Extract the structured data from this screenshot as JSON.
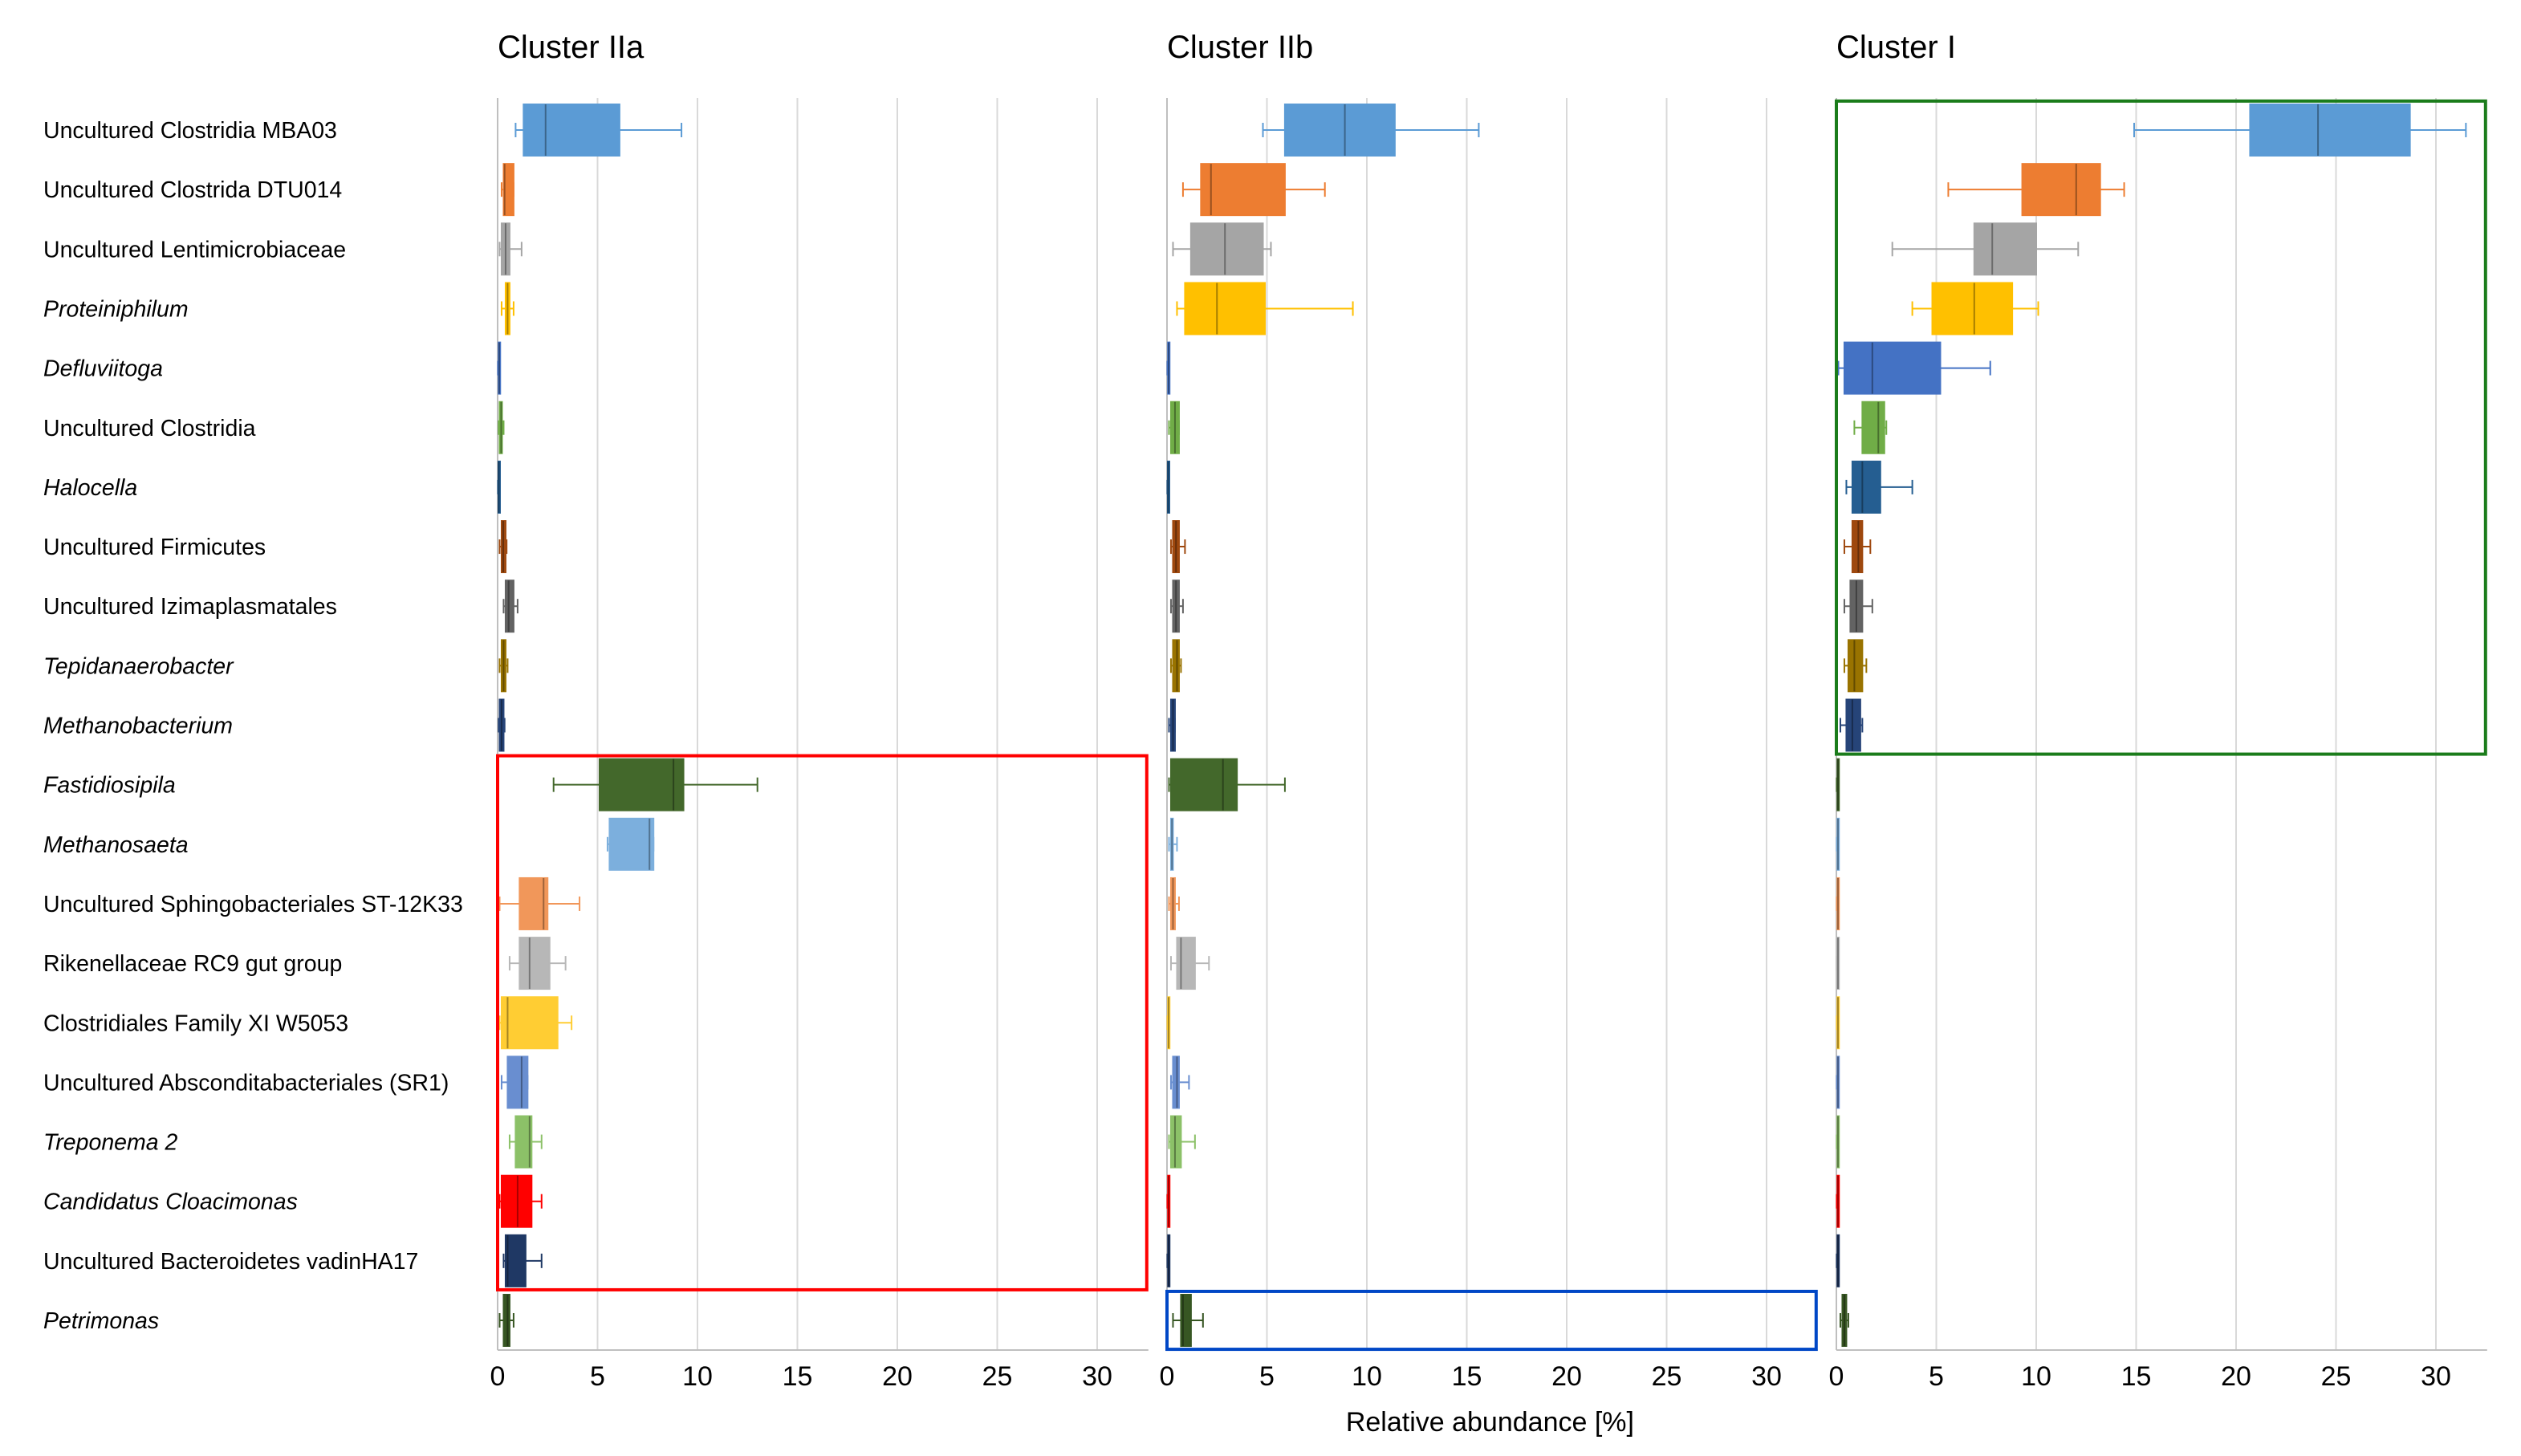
{
  "chart_data": {
    "type": "box",
    "xlabel": "Relative abundance [%]",
    "xlim": [
      0,
      32
    ],
    "xticks": [
      0,
      5,
      10,
      15,
      20,
      25,
      30
    ],
    "grid": "vertical",
    "categories": [
      {
        "label": "Uncultured Clostridia MBA03",
        "italic": false
      },
      {
        "label": "Uncultured Clostrida DTU014",
        "italic": false
      },
      {
        "label": "Uncultured Lentimicrobiaceae",
        "italic": false
      },
      {
        "label": "Proteiniphilum",
        "italic": true
      },
      {
        "label": "Defluviitoga",
        "italic": true
      },
      {
        "label": "Uncultured Clostridia",
        "italic": false
      },
      {
        "label": "Halocella",
        "italic": true
      },
      {
        "label": "Uncultured Firmicutes",
        "italic": false
      },
      {
        "label": "Uncultured Izimaplasmatales",
        "italic": false
      },
      {
        "label": "Tepidanaerobacter",
        "italic": true
      },
      {
        "label": "Methanobacterium",
        "italic": true
      },
      {
        "label": "Fastidiosipila",
        "italic": true
      },
      {
        "label": "Methanosaeta",
        "italic": true
      },
      {
        "label": "Uncultured Sphingobacteriales ST-12K33",
        "italic": false
      },
      {
        "label": "Rikenellaceae RC9 gut group",
        "italic": false
      },
      {
        "label": "Clostridiales Family XI W5053",
        "italic": false
      },
      {
        "label": "Uncultured Absconditabacteriales (SR1)",
        "italic": false
      },
      {
        "label": "Treponema 2",
        "italic": true
      },
      {
        "label": "Candidatus Cloacimonas",
        "italic": true
      },
      {
        "label": "Uncultured Bacteroidetes vadinHA17",
        "italic": false
      },
      {
        "label": "Petrimonas",
        "italic": true
      }
    ],
    "colors": [
      "#5b9bd5",
      "#ed7d31",
      "#a5a5a5",
      "#ffc000",
      "#4472c4",
      "#70ad47",
      "#255e91",
      "#9e480e",
      "#636363",
      "#997300",
      "#264478",
      "#43682b",
      "#7cafdd",
      "#f1975a",
      "#b7b7b7",
      "#ffcd33",
      "#698ed0",
      "#8cc168",
      "#ff0000",
      "#1f3864",
      "#375623"
    ],
    "panels": [
      {
        "title": "Cluster IIa",
        "highlight": {
          "from": 11,
          "to": 19,
          "color": "#ff0000"
        },
        "boxes": [
          [
            0.9,
            1.3,
            2.4,
            6.1,
            9.2
          ],
          [
            0.2,
            0.3,
            0.35,
            0.8,
            0.8
          ],
          [
            0.1,
            0.2,
            0.4,
            0.6,
            1.2
          ],
          [
            0.2,
            0.4,
            0.5,
            0.6,
            0.8
          ],
          [
            0.02,
            0.05,
            0.08,
            0.1,
            0.12
          ],
          [
            0.05,
            0.1,
            0.18,
            0.22,
            0.3
          ],
          [
            0.02,
            0.04,
            0.06,
            0.08,
            0.1
          ],
          [
            0.1,
            0.2,
            0.28,
            0.4,
            0.45
          ],
          [
            0.3,
            0.4,
            0.55,
            0.8,
            1.0
          ],
          [
            0.1,
            0.2,
            0.3,
            0.4,
            0.5
          ],
          [
            0.05,
            0.1,
            0.2,
            0.3,
            0.35
          ],
          [
            2.8,
            5.1,
            8.8,
            9.3,
            13.0
          ],
          [
            5.5,
            5.6,
            7.6,
            7.8,
            7.8
          ],
          [
            0.1,
            1.1,
            2.3,
            2.5,
            4.1
          ],
          [
            0.6,
            1.1,
            1.6,
            2.6,
            3.4
          ],
          [
            0.1,
            0.2,
            0.5,
            3.0,
            3.7
          ],
          [
            0.2,
            0.5,
            1.2,
            1.5,
            1.5
          ],
          [
            0.6,
            0.9,
            1.6,
            1.7,
            2.2
          ],
          [
            0.1,
            0.2,
            1.0,
            1.7,
            2.2
          ],
          [
            0.3,
            0.4,
            0.5,
            1.4,
            2.2
          ],
          [
            0.1,
            0.3,
            0.5,
            0.6,
            0.8
          ]
        ]
      },
      {
        "title": "Cluster IIb",
        "highlight": {
          "from": 20,
          "to": 20,
          "color": "#0047c6"
        },
        "boxes": [
          [
            4.8,
            5.9,
            8.9,
            11.4,
            15.6
          ],
          [
            0.8,
            1.7,
            2.2,
            5.9,
            7.9
          ],
          [
            0.3,
            1.2,
            2.9,
            4.8,
            5.2
          ],
          [
            0.5,
            0.9,
            2.5,
            4.9,
            9.3
          ],
          [
            0.02,
            0.05,
            0.08,
            0.1,
            0.12
          ],
          [
            0.1,
            0.2,
            0.4,
            0.6,
            0.6
          ],
          [
            0.02,
            0.04,
            0.06,
            0.08,
            0.1
          ],
          [
            0.2,
            0.3,
            0.45,
            0.6,
            0.9
          ],
          [
            0.2,
            0.3,
            0.45,
            0.6,
            0.8
          ],
          [
            0.2,
            0.3,
            0.5,
            0.6,
            0.7
          ],
          [
            0.1,
            0.2,
            0.3,
            0.4,
            0.4
          ],
          [
            0.1,
            0.2,
            2.8,
            3.5,
            5.9
          ],
          [
            0.1,
            0.2,
            0.25,
            0.3,
            0.5
          ],
          [
            0.1,
            0.2,
            0.3,
            0.4,
            0.6
          ],
          [
            0.2,
            0.5,
            0.7,
            1.4,
            2.1
          ],
          [
            0.02,
            0.05,
            0.08,
            0.1,
            0.12
          ],
          [
            0.2,
            0.3,
            0.5,
            0.6,
            1.1
          ],
          [
            0.1,
            0.2,
            0.4,
            0.7,
            1.4
          ],
          [
            0.02,
            0.05,
            0.08,
            0.1,
            0.12
          ],
          [
            0.02,
            0.05,
            0.08,
            0.1,
            0.12
          ],
          [
            0.3,
            0.7,
            0.8,
            1.2,
            1.8
          ]
        ]
      },
      {
        "title": "Cluster I",
        "highlight": {
          "from": 0,
          "to": 10,
          "color": "#1b7c1b"
        },
        "boxes": [
          [
            14.9,
            20.7,
            24.1,
            28.7,
            31.5
          ],
          [
            5.6,
            9.3,
            12.0,
            13.2,
            14.4
          ],
          [
            2.8,
            6.9,
            7.8,
            10.0,
            12.1
          ],
          [
            3.8,
            4.8,
            6.9,
            8.8,
            10.1
          ],
          [
            0.1,
            0.4,
            1.8,
            5.2,
            7.7
          ],
          [
            0.9,
            1.3,
            2.1,
            2.4,
            2.5
          ],
          [
            0.5,
            0.8,
            1.3,
            2.2,
            3.8
          ],
          [
            0.4,
            0.8,
            1.1,
            1.3,
            1.7
          ],
          [
            0.4,
            0.7,
            1.0,
            1.3,
            1.8
          ],
          [
            0.4,
            0.6,
            0.9,
            1.3,
            1.5
          ],
          [
            0.2,
            0.5,
            0.8,
            1.2,
            1.3
          ],
          [
            0.02,
            0.05,
            0.08,
            0.1,
            0.12
          ],
          [
            0.02,
            0.05,
            0.08,
            0.1,
            0.12
          ],
          [
            0.02,
            0.05,
            0.08,
            0.1,
            0.12
          ],
          [
            0.02,
            0.05,
            0.08,
            0.1,
            0.12
          ],
          [
            0.02,
            0.05,
            0.08,
            0.1,
            0.12
          ],
          [
            0.02,
            0.05,
            0.08,
            0.1,
            0.12
          ],
          [
            0.02,
            0.05,
            0.08,
            0.1,
            0.12
          ],
          [
            0.02,
            0.05,
            0.08,
            0.1,
            0.12
          ],
          [
            0.02,
            0.05,
            0.08,
            0.1,
            0.12
          ],
          [
            0.2,
            0.3,
            0.4,
            0.5,
            0.6
          ]
        ]
      }
    ]
  }
}
